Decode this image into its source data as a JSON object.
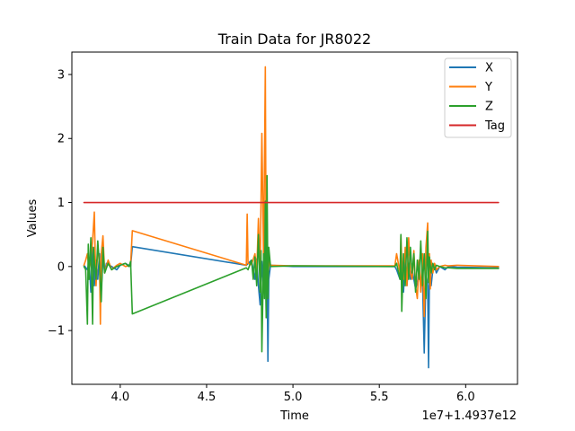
{
  "chart_data": {
    "type": "line",
    "title": "Train Data for JR8022",
    "xlabel": "Time",
    "ylabel": "Values",
    "x_offset_label": "1e7+1.4937e12",
    "xlim": [
      3.72,
      6.3
    ],
    "ylim": [
      -1.84,
      3.35
    ],
    "xticks": [
      {
        "value": 4.0,
        "label": "4.0"
      },
      {
        "value": 4.5,
        "label": "4.5"
      },
      {
        "value": 5.0,
        "label": "5.0"
      },
      {
        "value": 5.5,
        "label": "5.5"
      },
      {
        "value": 6.0,
        "label": "6.0"
      }
    ],
    "yticks": [
      {
        "value": -1,
        "label": "−1"
      },
      {
        "value": 0,
        "label": "0"
      },
      {
        "value": 1,
        "label": "1"
      },
      {
        "value": 2,
        "label": "2"
      },
      {
        "value": 3,
        "label": "3"
      }
    ],
    "legend_position": "top-right",
    "series": [
      {
        "name": "X",
        "color": "#1f77b4",
        "x": [
          3.79,
          3.81,
          3.82,
          3.83,
          3.84,
          3.845,
          3.85,
          3.86,
          3.87,
          3.88,
          3.89,
          3.9,
          3.91,
          3.92,
          3.95,
          3.98,
          4.0,
          4.03,
          4.06,
          4.07,
          4.73,
          4.76,
          4.78,
          4.79,
          4.8,
          4.81,
          4.82,
          4.83,
          4.84,
          4.845,
          4.85,
          4.855,
          4.86,
          4.87,
          5.0,
          5.59,
          5.6,
          5.62,
          5.63,
          5.64,
          5.65,
          5.66,
          5.67,
          5.68,
          5.69,
          5.7,
          5.71,
          5.72,
          5.73,
          5.74,
          5.75,
          5.76,
          5.77,
          5.78,
          5.785,
          5.79,
          5.8,
          5.81,
          5.82,
          5.83,
          5.85,
          5.88,
          5.9,
          5.95,
          6.19
        ],
        "y": [
          0.02,
          -0.05,
          0.08,
          -0.4,
          0.3,
          0.15,
          -0.3,
          0.1,
          -0.2,
          0.2,
          -0.4,
          0.15,
          -0.1,
          0.05,
          0.0,
          -0.05,
          0.02,
          0.05,
          0.0,
          0.31,
          0.02,
          0.1,
          -0.2,
          0.12,
          -0.3,
          -0.6,
          0.08,
          -0.4,
          0.1,
          -0.7,
          0.05,
          -1.48,
          -0.2,
          0.02,
          0.0,
          0.0,
          -0.05,
          -0.2,
          0.05,
          -0.4,
          0.1,
          -0.3,
          0.05,
          -0.2,
          -0.05,
          -0.2,
          -0.35,
          -0.25,
          -0.1,
          -0.3,
          -0.2,
          -1.35,
          -0.1,
          -0.3,
          -1.58,
          -0.1,
          -0.3,
          -0.05,
          0.02,
          -0.1,
          0.0,
          -0.05,
          0.0,
          -0.01,
          -0.02
        ]
      },
      {
        "name": "Y",
        "color": "#ff7f0e",
        "x": [
          3.79,
          3.8,
          3.81,
          3.82,
          3.83,
          3.84,
          3.85,
          3.855,
          3.86,
          3.87,
          3.88,
          3.885,
          3.89,
          3.9,
          3.91,
          3.93,
          3.95,
          3.98,
          4.0,
          4.03,
          4.06,
          4.07,
          4.73,
          4.735,
          4.74,
          4.76,
          4.78,
          4.79,
          4.8,
          4.81,
          4.82,
          4.83,
          4.84,
          4.845,
          4.85,
          4.855,
          4.86,
          4.865,
          4.87,
          5.0,
          5.59,
          5.6,
          5.62,
          5.625,
          5.63,
          5.64,
          5.65,
          5.66,
          5.67,
          5.68,
          5.69,
          5.7,
          5.71,
          5.72,
          5.73,
          5.74,
          5.75,
          5.76,
          5.77,
          5.78,
          5.785,
          5.79,
          5.795,
          5.8,
          5.81,
          5.82,
          5.83,
          5.85,
          5.88,
          5.9,
          5.95,
          6.19
        ],
        "y": [
          0.02,
          0.1,
          0.2,
          -0.05,
          0.1,
          0.4,
          0.85,
          0.2,
          -0.3,
          0.3,
          0.1,
          -0.9,
          0.2,
          0.48,
          -0.1,
          0.1,
          -0.05,
          0.02,
          0.05,
          0.0,
          0.02,
          0.56,
          0.02,
          0.82,
          0.05,
          0.03,
          0.2,
          -0.1,
          0.75,
          -0.1,
          2.08,
          0.05,
          3.12,
          -0.15,
          0.7,
          -0.2,
          0.0,
          0.1,
          0.02,
          0.01,
          0.01,
          0.2,
          -0.1,
          0.48,
          0.1,
          -0.2,
          0.3,
          -0.3,
          0.45,
          -0.1,
          -0.2,
          0.25,
          -0.3,
          -0.5,
          0.1,
          -0.4,
          0.2,
          -0.78,
          0.3,
          0.68,
          -0.2,
          0.2,
          -0.35,
          0.1,
          -0.1,
          0.05,
          -0.05,
          0.0,
          0.02,
          0.01,
          0.02,
          0.0
        ]
      },
      {
        "name": "Z",
        "color": "#2ca02c",
        "x": [
          3.79,
          3.8,
          3.81,
          3.815,
          3.82,
          3.83,
          3.84,
          3.845,
          3.85,
          3.86,
          3.87,
          3.88,
          3.89,
          3.9,
          3.91,
          3.93,
          3.95,
          3.98,
          4.0,
          4.03,
          4.05,
          4.06,
          4.07,
          4.73,
          4.74,
          4.76,
          4.77,
          4.78,
          4.79,
          4.8,
          4.81,
          4.815,
          4.82,
          4.83,
          4.835,
          4.84,
          4.845,
          4.85,
          4.855,
          4.86,
          4.87,
          5.0,
          5.59,
          5.6,
          5.62,
          5.625,
          5.63,
          5.64,
          5.65,
          5.66,
          5.67,
          5.68,
          5.69,
          5.7,
          5.71,
          5.72,
          5.73,
          5.74,
          5.75,
          5.76,
          5.77,
          5.78,
          5.785,
          5.79,
          5.8,
          5.81,
          5.82,
          5.83,
          5.85,
          5.88,
          5.9,
          5.95,
          6.19
        ],
        "y": [
          0.0,
          -0.05,
          -0.9,
          0.35,
          -0.2,
          0.45,
          -0.9,
          0.3,
          0.1,
          -0.2,
          0.4,
          0.0,
          -0.55,
          0.3,
          -0.1,
          0.05,
          -0.05,
          0.0,
          0.02,
          0.05,
          0.0,
          0.08,
          -0.74,
          -0.02,
          -0.05,
          0.1,
          -0.2,
          0.15,
          -0.3,
          0.5,
          -0.4,
          0.25,
          -1.33,
          0.2,
          -0.5,
          1.02,
          -0.8,
          1.42,
          -0.5,
          0.3,
          0.0,
          0.01,
          0.0,
          0.05,
          -0.2,
          0.5,
          -0.7,
          0.2,
          -0.3,
          0.45,
          -0.2,
          0.3,
          -0.1,
          0.2,
          -0.4,
          0.1,
          -0.2,
          0.4,
          -0.3,
          0.2,
          -0.5,
          0.55,
          -0.25,
          0.15,
          -0.1,
          0.05,
          -0.05,
          0.02,
          0.0,
          -0.02,
          -0.02,
          -0.03,
          -0.03
        ]
      },
      {
        "name": "Tag",
        "color": "#d62728",
        "x": [
          3.79,
          6.19
        ],
        "y": [
          1.0,
          1.0
        ]
      }
    ]
  }
}
